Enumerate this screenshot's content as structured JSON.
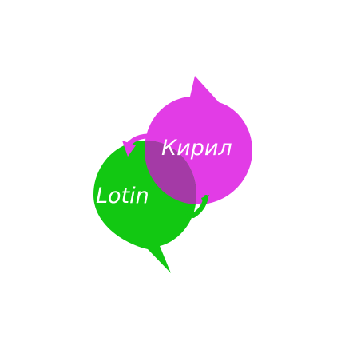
{
  "logo": {
    "cyrillic_label": "Кирил",
    "latin_label": "Lotin",
    "cyrillic_color": "#e23ce6",
    "latin_color": "#12c812",
    "overlap_color": "#a43aa6"
  },
  "icons": {
    "top_arrow": "curved-arrow-left-icon",
    "bottom_arrow": "curved-arrow-left-icon"
  }
}
